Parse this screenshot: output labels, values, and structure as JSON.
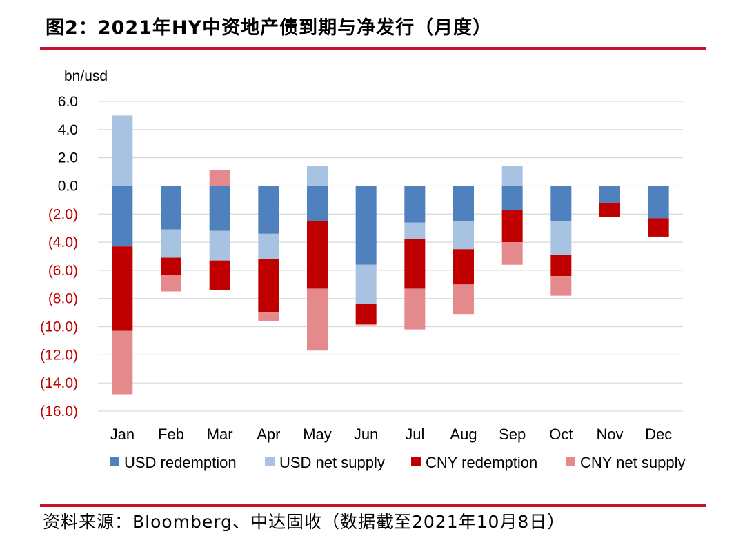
{
  "header": {
    "title": "图2：2021年HY中资地产债到期与净发行（月度）"
  },
  "footer": {
    "source": "资料来源：Bloomberg、中达固收（数据截至2021年10月8日）"
  },
  "colors": {
    "rule": "#c8102e",
    "usd_redemption": "#4e81bd",
    "usd_net_supply": "#a8c3e2",
    "cny_redemption": "#c00000",
    "cny_net_supply": "#e58a8c",
    "negative_tick": "#c00000",
    "positive_tick": "#000000",
    "grid": "#d9d9d9"
  },
  "chart_data": {
    "type": "bar",
    "stacked": true,
    "ylabel": "bn/usd",
    "ylim": [
      -16,
      6
    ],
    "yticks": [
      6,
      4,
      2,
      0,
      -2,
      -4,
      -6,
      -8,
      -10,
      -12,
      -14,
      -16
    ],
    "ytick_labels": [
      "6.0",
      "4.0",
      "2.0",
      "0.0",
      "(2.0)",
      "(4.0)",
      "(6.0)",
      "(8.0)",
      "(10.0)",
      "(12.0)",
      "(14.0)",
      "(16.0)"
    ],
    "grid": true,
    "legend_position": "bottom",
    "categories": [
      "Jan",
      "Feb",
      "Mar",
      "Apr",
      "May",
      "Jun",
      "Jul",
      "Aug",
      "Sep",
      "Oct",
      "Nov",
      "Dec"
    ],
    "series": [
      {
        "name": "USD redemption",
        "key": "usd_redemption",
        "values": [
          -4.3,
          -3.1,
          -3.2,
          -3.4,
          -2.5,
          -5.6,
          -2.6,
          -2.5,
          -1.7,
          -2.5,
          -1.2,
          -2.3
        ]
      },
      {
        "name": "USD net supply",
        "key": "usd_net_supply",
        "values": [
          5.0,
          -2.0,
          -2.1,
          -1.8,
          1.4,
          -2.8,
          -1.2,
          -2.0,
          1.4,
          -2.4,
          0,
          0
        ]
      },
      {
        "name": "CNY redemption",
        "key": "cny_redemption",
        "values": [
          -6.0,
          -1.2,
          -2.1,
          -3.8,
          -4.8,
          -1.4,
          -3.5,
          -2.5,
          -2.3,
          -1.5,
          -1.0,
          -1.3
        ]
      },
      {
        "name": "CNY net supply",
        "key": "cny_net_supply",
        "values": [
          -4.5,
          -1.2,
          1.1,
          -0.6,
          -4.4,
          -0.1,
          -2.9,
          -2.1,
          -1.6,
          -1.4,
          0,
          0
        ]
      }
    ]
  }
}
